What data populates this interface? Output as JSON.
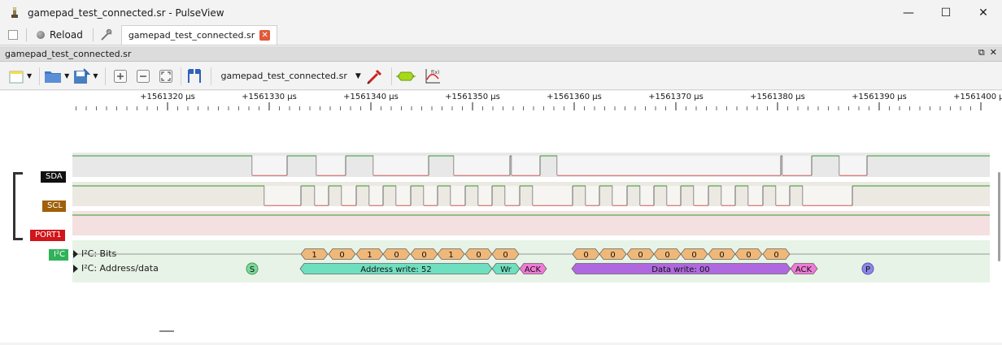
{
  "window": {
    "title": "gamepad_test_connected.sr - PulseView",
    "minimize": "—",
    "maximize": "☐",
    "close": "✕"
  },
  "tabbar": {
    "reload_label": "Reload",
    "tab_label": "gamepad_test_connected.sr",
    "tab_close": "✕"
  },
  "dock": {
    "title": "gamepad_test_connected.sr",
    "float_btn": "⧉",
    "close_btn": "✕"
  },
  "toolbar": {
    "file_select": "gamepad_test_connected.sr",
    "file_select_arrow": "▼"
  },
  "ruler": {
    "ticks": [
      "+1561320 µs",
      "+1561330 µs",
      "+1561340 µs",
      "+1561350 µs",
      "+1561360 µs",
      "+1561370 µs",
      "+1561380 µs",
      "+1561390 µs",
      "+1561400 µs"
    ]
  },
  "signals": {
    "sda": "SDA",
    "scl": "SCL",
    "port1": "PORT1",
    "i2c": "I²C"
  },
  "decoder_rows": {
    "bits_label": "I²C: Bits",
    "addr_label": "I²C: Address/data"
  },
  "annotations": {
    "start": "S",
    "stop": "P",
    "addr_bits": [
      "1",
      "0",
      "1",
      "0",
      "0",
      "1",
      "0",
      "0"
    ],
    "data_bits": [
      "0",
      "0",
      "0",
      "0",
      "0",
      "0",
      "0",
      "0"
    ],
    "address_write": "Address write: 52",
    "wr": "Wr",
    "ack1": "ACK",
    "data_write": "Data write: 00",
    "ack2": "ACK"
  },
  "colors": {
    "sda_label": "#111111",
    "scl_label": "#a0600a",
    "port1_label": "#d0151b",
    "i2c_label": "#2fb25a",
    "trace_high": "#2e9e2e",
    "trace_low": "#c02020",
    "bits_fill": "#f0b878",
    "addr_fill": "#6ee0c0",
    "ack_fill": "#f07ad8",
    "data_fill": "#b068e0",
    "start_fill": "#7ad89a",
    "stop_fill": "#8c86e8"
  }
}
